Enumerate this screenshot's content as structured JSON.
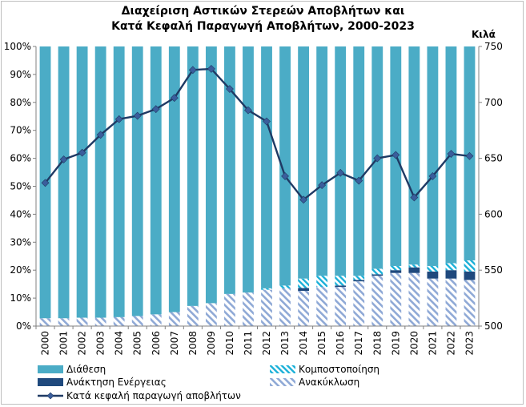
{
  "chart_data": {
    "type": "bar",
    "title_line1": "Διαχείριση Αστικών Στερεών Αποβλήτων και",
    "title_line2": "Κατά Κεφαλή Παραγωγή Αποβλήτων, 2000-2023",
    "y2label": "Κιλά",
    "categories": [
      "2000",
      "2001",
      "2002",
      "2003",
      "2004",
      "2005",
      "2006",
      "2007",
      "2008",
      "2009",
      "2010",
      "2011",
      "2012",
      "2013",
      "2014",
      "2015",
      "2016",
      "2017",
      "2018",
      "2019",
      "2020",
      "2021",
      "2022",
      "2023"
    ],
    "ylim": [
      0,
      100
    ],
    "y_ticks": [
      "0%",
      "10%",
      "20%",
      "30%",
      "40%",
      "50%",
      "60%",
      "70%",
      "80%",
      "90%",
      "100%"
    ],
    "y2lim": [
      500,
      750
    ],
    "y2_ticks": [
      "500",
      "550",
      "600",
      "650",
      "700",
      "750"
    ],
    "legend_position": "bottom",
    "series": [
      {
        "name": "Ανακύκλωση",
        "axis": "left",
        "style": "hatch-light",
        "values": [
          2.8,
          2.8,
          3,
          3,
          3.2,
          3.6,
          4.2,
          5,
          7.2,
          8.2,
          11.5,
          12,
          13,
          13.5,
          12.6,
          14,
          14,
          16,
          18,
          19,
          19,
          17,
          17,
          16.5
        ]
      },
      {
        "name": "Ανάκτηση Ενέργειας",
        "axis": "left",
        "style": "solid-dark",
        "values": [
          0,
          0,
          0,
          0,
          0,
          0,
          0,
          0,
          0,
          0,
          0,
          0,
          0,
          0,
          1,
          0,
          0.5,
          0.5,
          0.5,
          1,
          2,
          2.5,
          3,
          3
        ]
      },
      {
        "name": "Κομποστοποίηση",
        "axis": "left",
        "style": "hatch-cyan",
        "values": [
          0,
          0,
          0,
          0,
          0,
          0,
          0,
          0,
          0,
          0,
          0,
          0,
          0.5,
          1,
          3.4,
          4,
          3.5,
          1.5,
          2,
          1.5,
          1,
          2,
          2.5,
          4
        ]
      },
      {
        "name": "Διάθεση",
        "axis": "left",
        "style": "solid-teal",
        "values": [
          97.2,
          97.2,
          97,
          97,
          96.8,
          96.4,
          95.8,
          95,
          92.8,
          91.8,
          88.5,
          88,
          86.5,
          85.5,
          83,
          82,
          82,
          82,
          79.5,
          78.5,
          78,
          78.5,
          77.5,
          76.5
        ]
      },
      {
        "name": "Κατά κεφαλή παραγωγή αποβλήτων",
        "type": "line",
        "axis": "right",
        "values": [
          628,
          649,
          655,
          671,
          685,
          688,
          694,
          704,
          729,
          730,
          712,
          693,
          683,
          634,
          613,
          626,
          637,
          630,
          650,
          653,
          615,
          634,
          654,
          652
        ]
      }
    ],
    "colors": {
      "teal": "#4bacc6",
      "dark": "#1f497d",
      "line": "#1f3a64",
      "hatch_light": "#8fa9d6",
      "hatch_cyan": "#1ab0d8"
    }
  }
}
